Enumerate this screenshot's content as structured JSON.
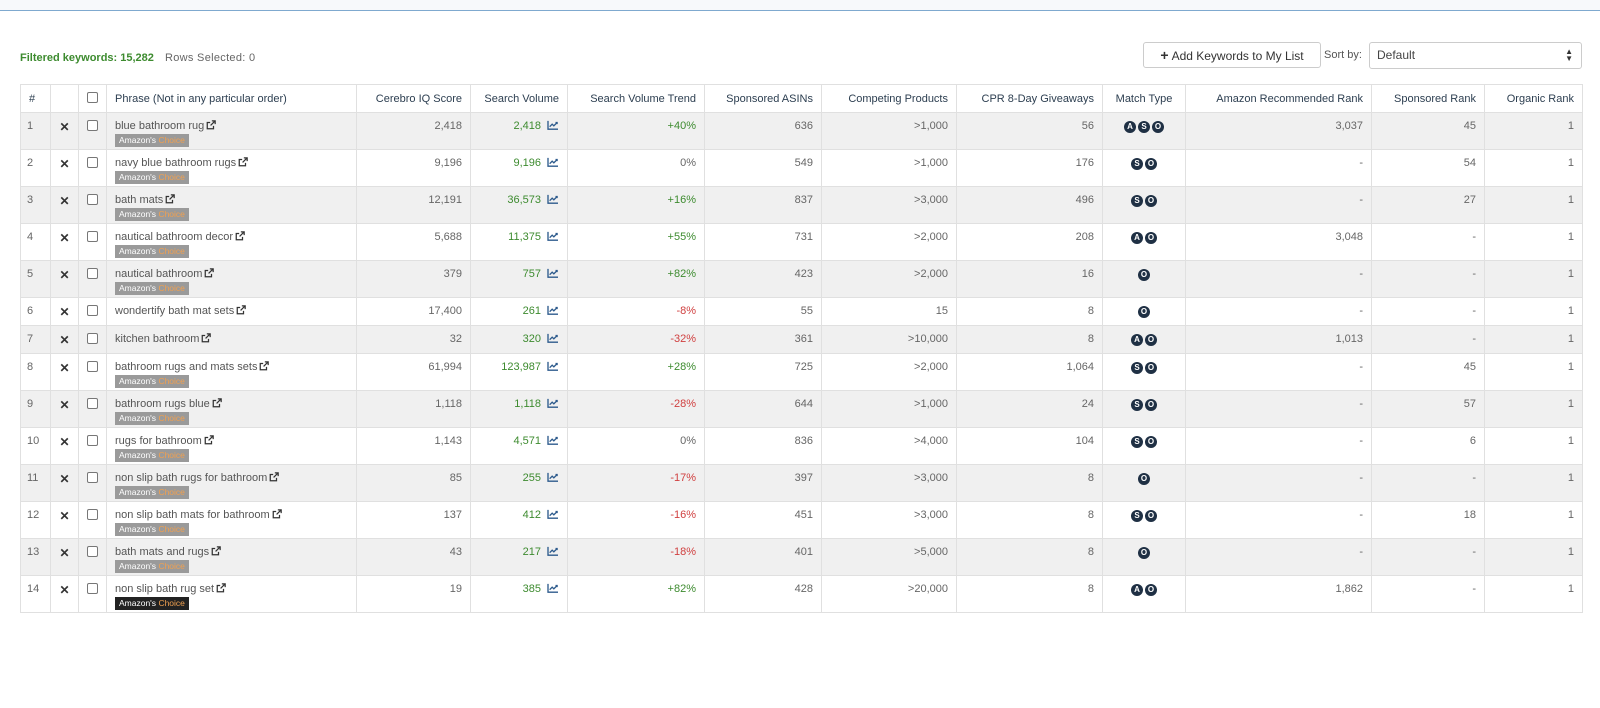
{
  "header": {
    "filtered_label": "Filtered keywords: 15,282",
    "rows_selected_label": "Rows Selected: 0",
    "add_button_label": "Add Keywords to My List",
    "sort_label": "Sort by:",
    "sort_value": "Default"
  },
  "table": {
    "columns": [
      "#",
      "",
      "",
      "Phrase (Not in any particular order)",
      "Cerebro IQ Score",
      "Search Volume",
      "Search Volume Trend",
      "Sponsored ASINs",
      "Competing Products",
      "CPR 8-Day Giveaways",
      "Match Type",
      "Amazon Recommended Rank",
      "Sponsored Rank",
      "Organic Rank"
    ],
    "badge": {
      "prefix": "Amazon's",
      "suffix": "Choice"
    },
    "rows": [
      {
        "n": "1",
        "phrase": "blue bathroom rug",
        "badge": "grey",
        "iq": "2,418",
        "sv": "2,418",
        "trend": "+40%",
        "tc": "pos",
        "asins": "636",
        "comp": ">1,000",
        "cpr": "56",
        "mt": [
          "A",
          "S",
          "O"
        ],
        "arr": "3,037",
        "sr": "45",
        "or": "1"
      },
      {
        "n": "2",
        "phrase": "navy blue bathroom rugs",
        "badge": "grey",
        "iq": "9,196",
        "sv": "9,196",
        "trend": "0%",
        "tc": "zero",
        "asins": "549",
        "comp": ">1,000",
        "cpr": "176",
        "mt": [
          "S",
          "O"
        ],
        "arr": "-",
        "sr": "54",
        "or": "1"
      },
      {
        "n": "3",
        "phrase": "bath mats",
        "badge": "grey",
        "iq": "12,191",
        "sv": "36,573",
        "trend": "+16%",
        "tc": "pos",
        "asins": "837",
        "comp": ">3,000",
        "cpr": "496",
        "mt": [
          "S",
          "O"
        ],
        "arr": "-",
        "sr": "27",
        "or": "1"
      },
      {
        "n": "4",
        "phrase": "nautical bathroom decor",
        "badge": "grey",
        "iq": "5,688",
        "sv": "11,375",
        "trend": "+55%",
        "tc": "pos",
        "asins": "731",
        "comp": ">2,000",
        "cpr": "208",
        "mt": [
          "A",
          "O"
        ],
        "arr": "3,048",
        "sr": "-",
        "or": "1"
      },
      {
        "n": "5",
        "phrase": "nautical bathroom",
        "badge": "grey",
        "iq": "379",
        "sv": "757",
        "trend": "+82%",
        "tc": "pos",
        "asins": "423",
        "comp": ">2,000",
        "cpr": "16",
        "mt": [
          "O"
        ],
        "arr": "-",
        "sr": "-",
        "or": "1"
      },
      {
        "n": "6",
        "phrase": "wondertify bath mat sets",
        "badge": "",
        "iq": "17,400",
        "sv": "261",
        "trend": "-8%",
        "tc": "neg",
        "asins": "55",
        "comp": "15",
        "cpr": "8",
        "mt": [
          "O"
        ],
        "arr": "-",
        "sr": "-",
        "or": "1"
      },
      {
        "n": "7",
        "phrase": "kitchen bathroom",
        "badge": "",
        "iq": "32",
        "sv": "320",
        "trend": "-32%",
        "tc": "neg",
        "asins": "361",
        "comp": ">10,000",
        "cpr": "8",
        "mt": [
          "A",
          "O"
        ],
        "arr": "1,013",
        "sr": "-",
        "or": "1"
      },
      {
        "n": "8",
        "phrase": "bathroom rugs and mats sets",
        "badge": "grey",
        "iq": "61,994",
        "sv": "123,987",
        "trend": "+28%",
        "tc": "pos",
        "asins": "725",
        "comp": ">2,000",
        "cpr": "1,064",
        "mt": [
          "S",
          "O"
        ],
        "arr": "-",
        "sr": "45",
        "or": "1"
      },
      {
        "n": "9",
        "phrase": "bathroom rugs blue",
        "badge": "grey",
        "iq": "1,118",
        "sv": "1,118",
        "trend": "-28%",
        "tc": "neg",
        "asins": "644",
        "comp": ">1,000",
        "cpr": "24",
        "mt": [
          "S",
          "O"
        ],
        "arr": "-",
        "sr": "57",
        "or": "1"
      },
      {
        "n": "10",
        "phrase": "rugs for bathroom",
        "badge": "grey",
        "iq": "1,143",
        "sv": "4,571",
        "trend": "0%",
        "tc": "zero",
        "asins": "836",
        "comp": ">4,000",
        "cpr": "104",
        "mt": [
          "S",
          "O"
        ],
        "arr": "-",
        "sr": "6",
        "or": "1"
      },
      {
        "n": "11",
        "phrase": "non slip bath rugs for bathroom",
        "badge": "grey",
        "iq": "85",
        "sv": "255",
        "trend": "-17%",
        "tc": "neg",
        "asins": "397",
        "comp": ">3,000",
        "cpr": "8",
        "mt": [
          "O"
        ],
        "arr": "-",
        "sr": "-",
        "or": "1"
      },
      {
        "n": "12",
        "phrase": "non slip bath mats for bathroom",
        "badge": "grey",
        "iq": "137",
        "sv": "412",
        "trend": "-16%",
        "tc": "neg",
        "asins": "451",
        "comp": ">3,000",
        "cpr": "8",
        "mt": [
          "S",
          "O"
        ],
        "arr": "-",
        "sr": "18",
        "or": "1"
      },
      {
        "n": "13",
        "phrase": "bath mats and rugs",
        "badge": "grey",
        "iq": "43",
        "sv": "217",
        "trend": "-18%",
        "tc": "neg",
        "asins": "401",
        "comp": ">5,000",
        "cpr": "8",
        "mt": [
          "O"
        ],
        "arr": "-",
        "sr": "-",
        "or": "1"
      },
      {
        "n": "14",
        "phrase": "non slip bath rug set",
        "badge": "dark",
        "iq": "19",
        "sv": "385",
        "trend": "+82%",
        "tc": "pos",
        "asins": "428",
        "comp": ">20,000",
        "cpr": "8",
        "mt": [
          "A",
          "O"
        ],
        "arr": "1,862",
        "sr": "-",
        "or": "1"
      }
    ]
  }
}
